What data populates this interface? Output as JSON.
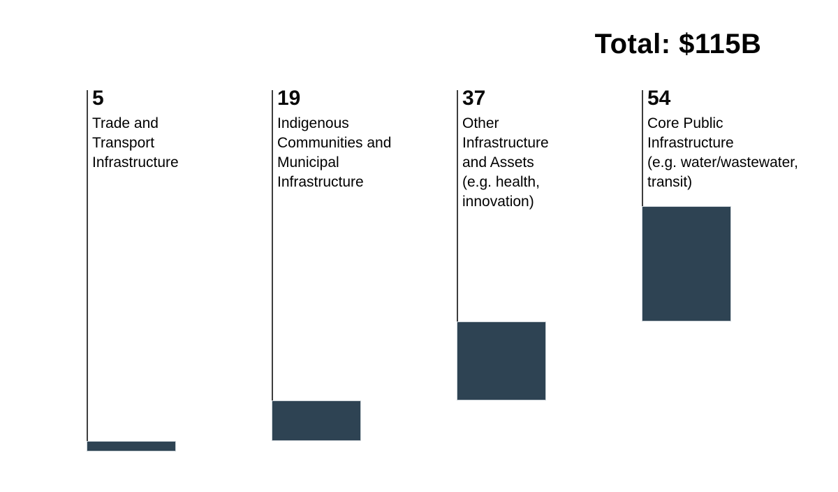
{
  "title": "Total: $115B",
  "chart_data": {
    "type": "bar",
    "subtype": "waterfall",
    "title": "Total: $115B",
    "total": 115,
    "unit": "$B",
    "categories": [
      "Trade and Transport Infrastructure",
      "Indigenous Communities and Municipal Infrastructure",
      "Other Infrastructure and Assets (e.g. health, innovation)",
      "Core Public Infrastructure (e.g. water/wastewater, transit)"
    ],
    "values": [
      5,
      19,
      37,
      54
    ],
    "value_labels": [
      "5",
      "19",
      "37",
      "54"
    ],
    "orientation": "vertical",
    "stacking": "cumulative-ascending",
    "grid": "off",
    "legend": "none",
    "axis_labels": "none"
  },
  "columns": [
    {
      "value": "5",
      "label": "Trade and\nTransport\nInfrastructure"
    },
    {
      "value": "19",
      "label": "Indigenous\nCommunities and\nMunicipal\nInfrastructure"
    },
    {
      "value": "37",
      "label": "Other\nInfrastructure\nand Assets\n(e.g. health,\ninnovation)"
    },
    {
      "value": "54",
      "label": "Core Public\nInfrastructure\n(e.g. water/wastewater,\ntransit)"
    }
  ],
  "colors": {
    "bar": "#2e4353",
    "bar_border": "#ccd3d8",
    "rule_line": "#3d3d3d",
    "text": "#000000",
    "background": "#ffffff"
  }
}
